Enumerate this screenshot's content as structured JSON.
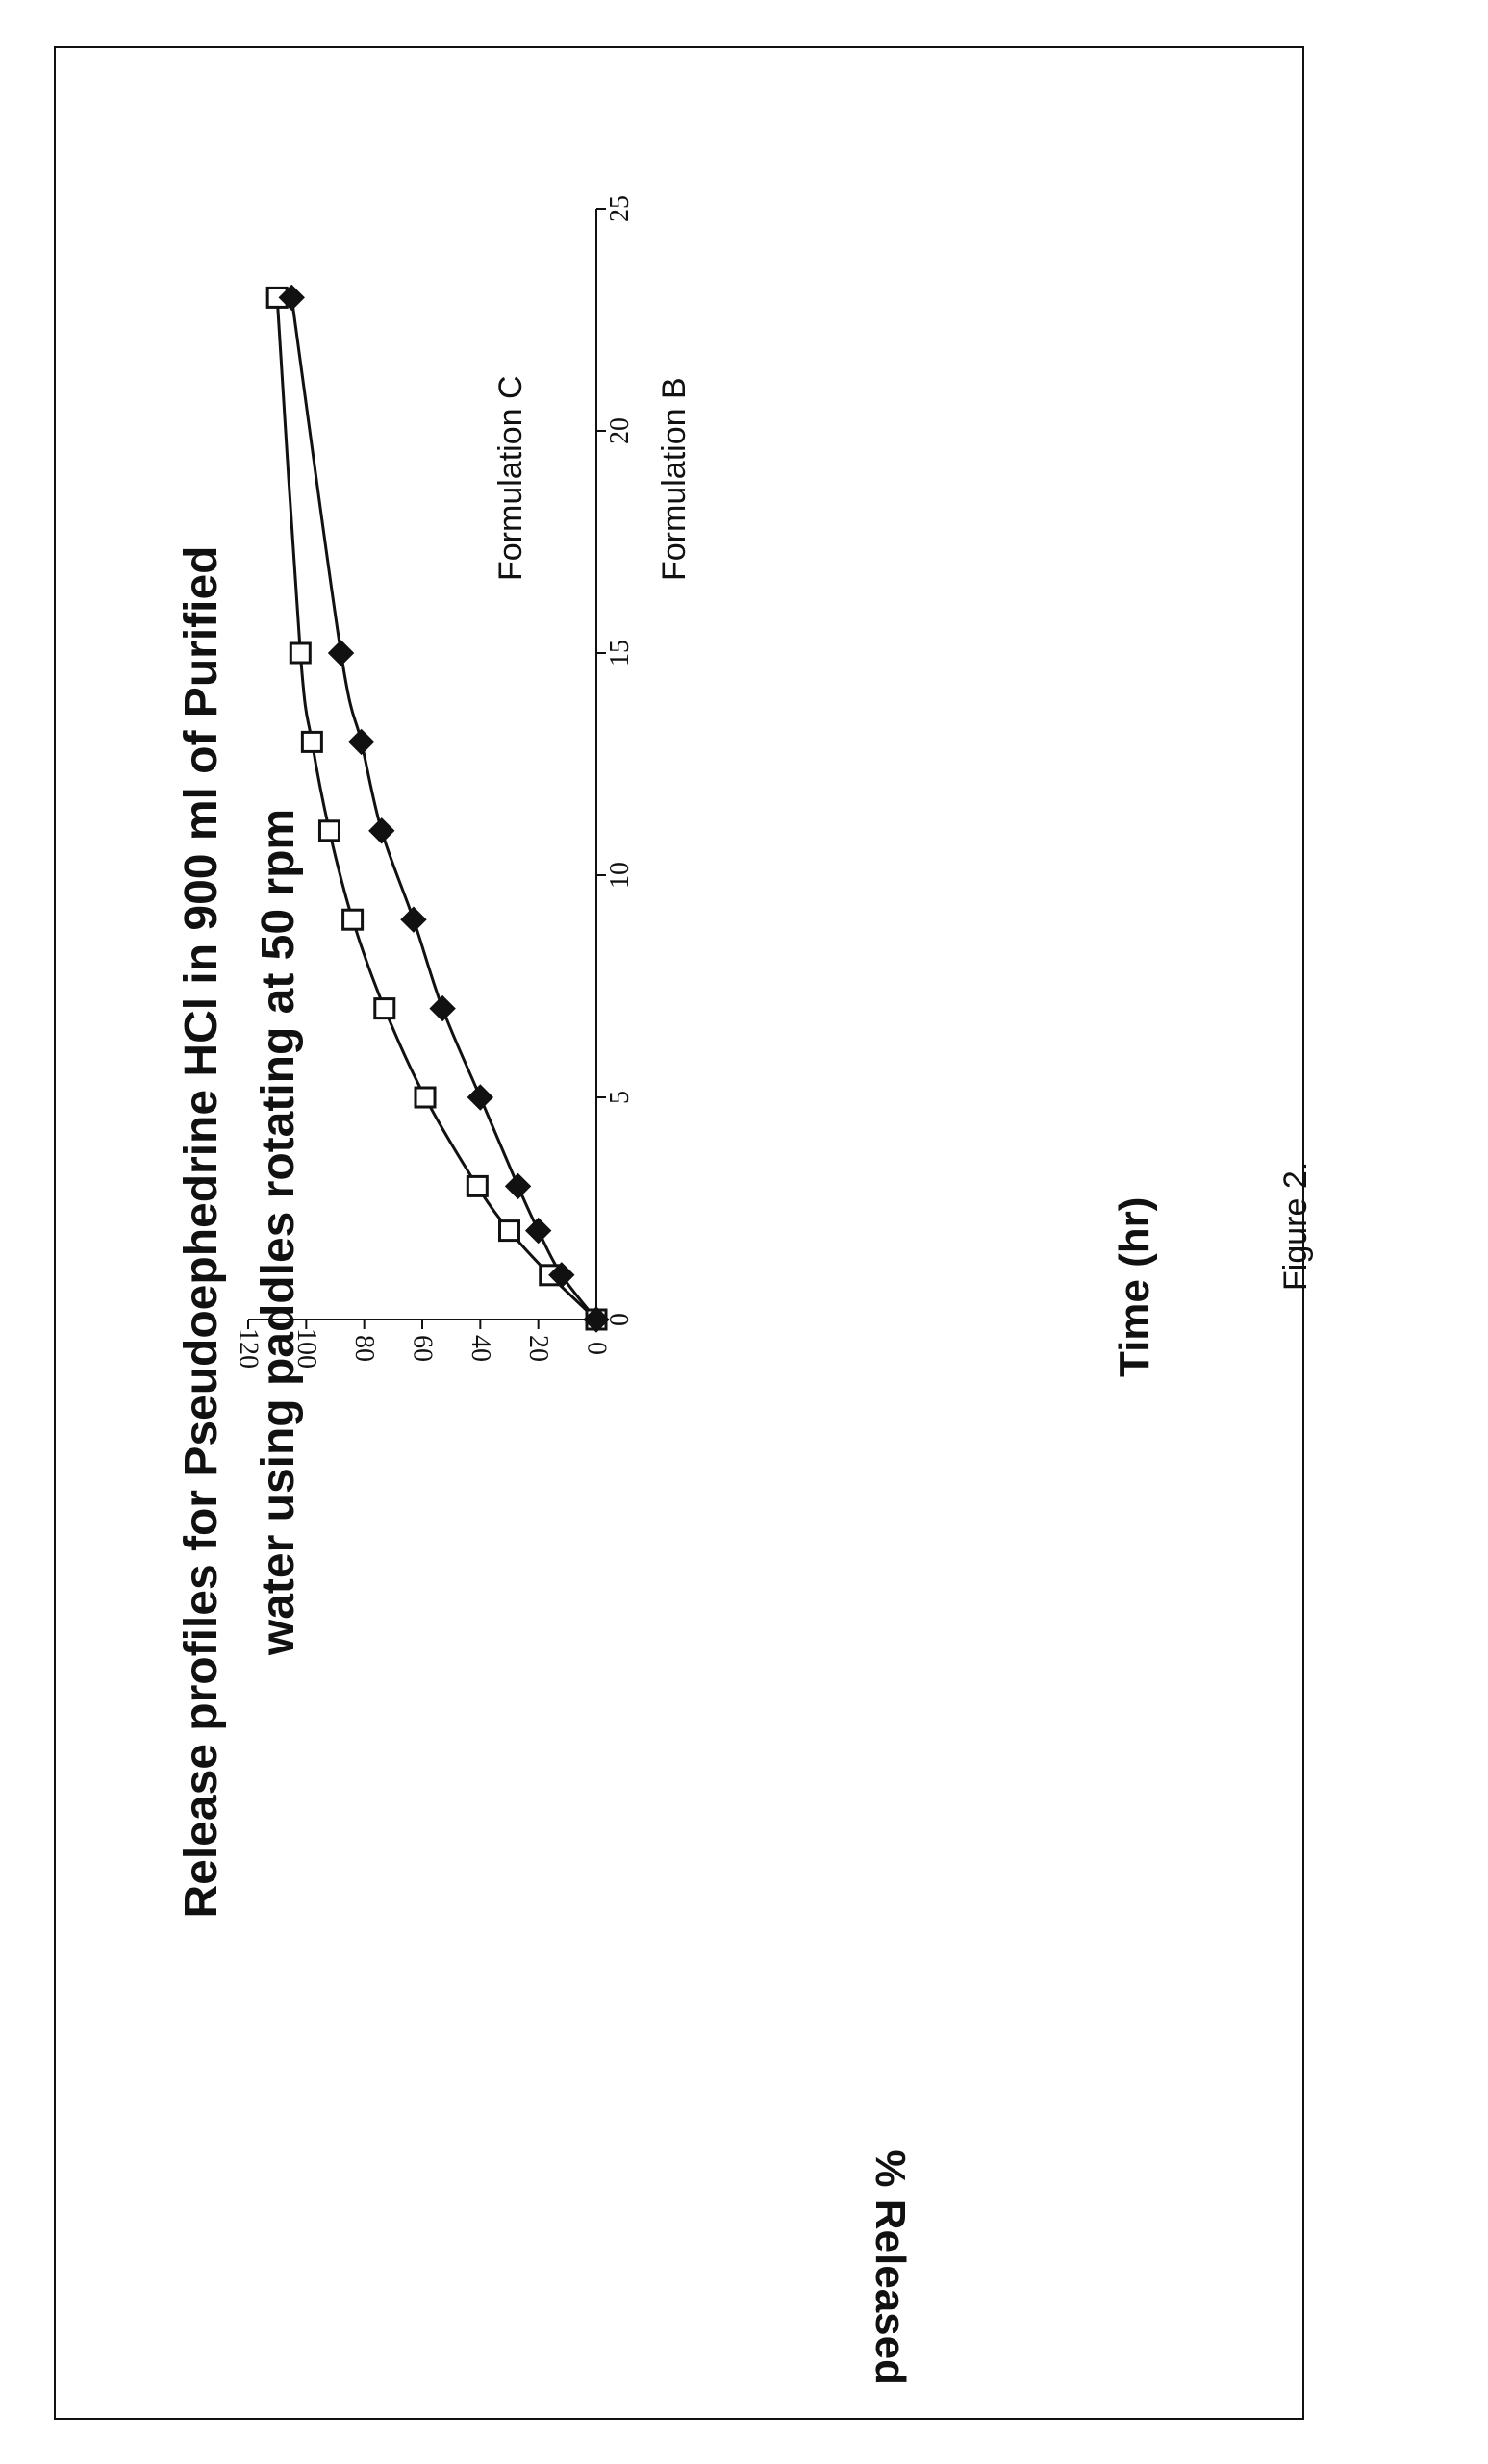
{
  "figure_label": "Figure 2.",
  "chart_data": {
    "type": "line",
    "title": "Release profiles for Pseudoephedrine HCl in 900 ml of  Purified water using paddles rotating at 50 rpm",
    "title_lines": [
      "Release profiles for Pseudoephedrine HCl in 900 ml of  Purified",
      "water using paddles rotating at 50 rpm"
    ],
    "xlabel": "Time (hr)",
    "ylabel": "% Released",
    "xlim": [
      0,
      25
    ],
    "ylim": [
      0,
      120
    ],
    "xticks": [
      0,
      5,
      10,
      15,
      20,
      25
    ],
    "yticks": [
      0,
      20,
      40,
      60,
      80,
      100,
      120
    ],
    "grid": false,
    "series": [
      {
        "name": "Formulation C",
        "marker": "open-square",
        "x": [
          0,
          1,
          2,
          3,
          5,
          7,
          9,
          11,
          13,
          15,
          23
        ],
        "y": [
          0,
          16,
          30,
          41,
          59,
          73,
          84,
          92,
          98,
          102,
          110
        ]
      },
      {
        "name": "Formulation B",
        "marker": "filled-diamond",
        "x": [
          0,
          1,
          2,
          3,
          5,
          7,
          9,
          11,
          13,
          15,
          23
        ],
        "y": [
          0,
          12,
          20,
          27,
          40,
          53,
          63,
          74,
          81,
          88,
          105
        ]
      }
    ]
  }
}
